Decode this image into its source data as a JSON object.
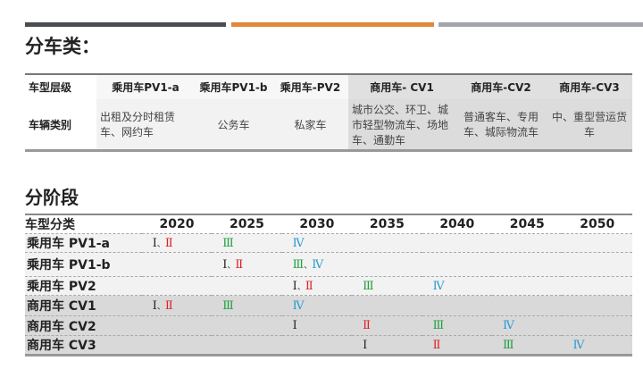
{
  "accent_colors": {
    "bar_dark": "#4a4d52",
    "bar_orange": "#e0873a",
    "bar_gray": "#a2a5aa"
  },
  "section1": {
    "title": "分车类：",
    "header": [
      "车型层级",
      "乘用车PV1-a",
      "乘用车PV1-b",
      "乘用车-PV2",
      "商用车- CV1",
      "商用车-CV2",
      "商用车-CV3"
    ],
    "body": [
      "车辆类别",
      "出租及分时租赁车、网约车",
      "公务车",
      "私家车",
      "城市公交、环卫、城市轻型物流车、场地车、通勤车",
      "普通客车、专用车、城际物流车",
      "中、重型营运货车"
    ]
  },
  "section2": {
    "title": "分阶段",
    "header": [
      "车型分类",
      "2020",
      "2025",
      "2030",
      "2035",
      "2040",
      "2045",
      "2050"
    ],
    "stage_colors": {
      "Ⅰ": "#222222",
      "Ⅱ": "#e02020",
      "Ⅲ": "#20a040",
      "Ⅳ": "#2a9ad0"
    },
    "rows": [
      {
        "label": "乘用车 PV1-a",
        "cells": [
          [
            "Ⅰ",
            "Ⅱ"
          ],
          [
            "Ⅲ"
          ],
          [
            "Ⅳ"
          ],
          [],
          [],
          [],
          []
        ]
      },
      {
        "label": "乘用车 PV1-b",
        "cells": [
          [],
          [
            "Ⅰ",
            "Ⅱ"
          ],
          [
            "Ⅲ",
            "Ⅳ"
          ],
          [],
          [],
          [],
          []
        ]
      },
      {
        "label": "乘用车  PV2",
        "cells": [
          [],
          [],
          [
            "Ⅰ",
            "Ⅱ"
          ],
          [
            "Ⅲ"
          ],
          [
            "Ⅳ"
          ],
          [],
          []
        ]
      },
      {
        "label": "商用车  CV1",
        "cells": [
          [
            "Ⅰ",
            "Ⅱ"
          ],
          [
            "Ⅲ"
          ],
          [
            "Ⅳ"
          ],
          [],
          [],
          [],
          []
        ]
      },
      {
        "label": "商用车  CV2",
        "cells": [
          [],
          [],
          [
            "Ⅰ"
          ],
          [
            "Ⅱ"
          ],
          [
            "Ⅲ"
          ],
          [
            "Ⅳ"
          ],
          []
        ]
      },
      {
        "label": "商用车  CV3",
        "cells": [
          [],
          [],
          [],
          [
            "Ⅰ"
          ],
          [
            "Ⅱ"
          ],
          [
            "Ⅲ"
          ],
          [
            "Ⅳ"
          ]
        ]
      }
    ]
  }
}
